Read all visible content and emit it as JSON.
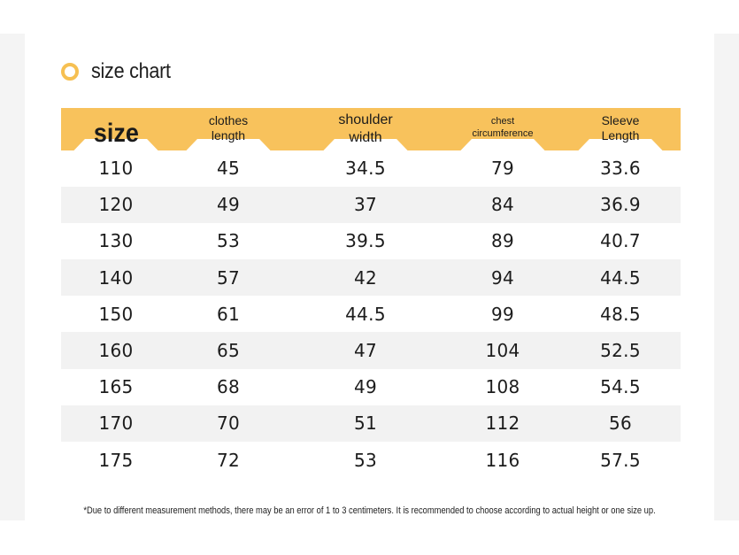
{
  "title": "size chart",
  "colors": {
    "accent": "#f8c25c",
    "ring": "#f6c052",
    "stripe": "#f2f2f2"
  },
  "table": {
    "headers": [
      {
        "line1": "size",
        "line2": ""
      },
      {
        "line1": "clothes",
        "line2": "length"
      },
      {
        "line1": "shoulder",
        "line2": "width"
      },
      {
        "line1": "chest",
        "line2": "circumference"
      },
      {
        "line1": "Sleeve",
        "line2": "Length"
      }
    ],
    "rows": [
      [
        "110",
        "45",
        "34.5",
        "79",
        "33.6"
      ],
      [
        "120",
        "49",
        "37",
        "84",
        "36.9"
      ],
      [
        "130",
        "53",
        "39.5",
        "89",
        "40.7"
      ],
      [
        "140",
        "57",
        "42",
        "94",
        "44.5"
      ],
      [
        "150",
        "61",
        "44.5",
        "99",
        "48.5"
      ],
      [
        "160",
        "65",
        "47",
        "104",
        "52.5"
      ],
      [
        "165",
        "68",
        "49",
        "108",
        "54.5"
      ],
      [
        "170",
        "70",
        "51",
        "112",
        "56"
      ],
      [
        "175",
        "72",
        "53",
        "116",
        "57.5"
      ]
    ]
  },
  "note": "*Due to different measurement methods, there may be an error of 1 to 3 centimeters. It is recommended to choose according to actual height or one size up."
}
